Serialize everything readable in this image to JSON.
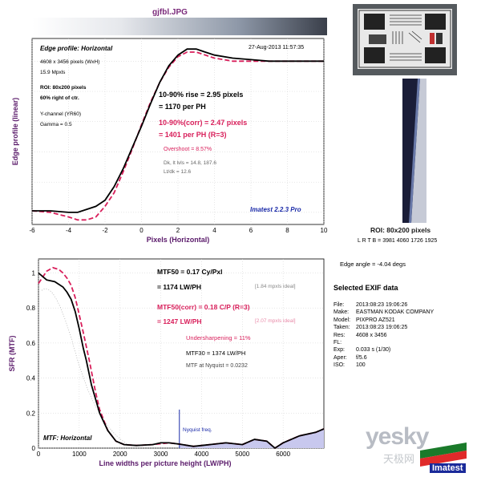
{
  "file_title": "gjfbl.JPG",
  "edge_plot": {
    "profile_label": "Edge profile: Horizontal",
    "date": "27-Aug-2013 11:57:35",
    "info_lines": [
      "4608 x 3456 pixels (WxH)",
      "15.9 Mpxls"
    ],
    "roi_lines": [
      "ROI: 80x200 pixels",
      "60% right of ctr."
    ],
    "channel_lines": [
      "Y-channel (YR60)",
      "Gamma = 0.5"
    ],
    "rise_line1": "10-90% rise = 2.95 pixels",
    "rise_line2": "= 1170 per PH",
    "corr_line1": "10-90%(corr) = 2.47 pixels",
    "corr_line2": "= 1401 per PH   (R=3)",
    "overshoot": "Overshoot = 8.57%",
    "dk_lvls": "Dk, lt lvls = 14.8, 187.6",
    "ltdk": "Lt/dk = 12.6",
    "version": "Imatest 2.2.3 Pro",
    "ylabel": "Edge profile (linear)",
    "xlabel": "Pixels (Horizontal)",
    "xticks": [
      "-6",
      "-4",
      "-2",
      "0",
      "2",
      "4",
      "6",
      "8",
      "10"
    ]
  },
  "mtf_plot": {
    "ylabel": "SFR (MTF)",
    "xlabel": "Line widths per picture height (LW/PH)",
    "yticks": [
      "0",
      "0.2",
      "0.4",
      "0.6",
      "0.8",
      "1"
    ],
    "xticks": [
      "0",
      "1000",
      "2000",
      "3000",
      "4000",
      "5000",
      "6000"
    ],
    "mtf50_line1": "MTF50 = 0.17 Cy/Pxl",
    "mtf50_line2": "= 1174 LW/PH",
    "mtf50_ideal": "[1.84 mpxls ideal]",
    "corr_line1": "MTF50(corr) = 0.18 C/P   (R=3)",
    "corr_line2": "= 1247 LW/PH",
    "corr_ideal": "[2.07 mpxls ideal]",
    "undersharpening": "Undersharpening = 11%",
    "mtf30": "MTF30 = 1374 LW/PH",
    "nyquist_mtf": "MTF at Nyquist = 0.0232",
    "nyquist_label": "Nyquist freq.",
    "corner_label": "MTF: Horizontal"
  },
  "roi_caption": "ROI: 80x200 pixels",
  "lrtb": "L R T B = 3981 4060  1726 1925",
  "edge_angle": "Edge angle = -4.04 degs",
  "exif": {
    "title": "Selected EXIF data",
    "rows": [
      {
        "label": "File:",
        "value": "2013:08:23 19:06:26"
      },
      {
        "label": "Make:",
        "value": "EASTMAN KODAK COMPANY"
      },
      {
        "label": "Model:",
        "value": "PIXPRO AZ521"
      },
      {
        "label": "Taken:",
        "value": "2013:08:23 19:06:25"
      },
      {
        "label": "Res:",
        "value": "4608 x 3456"
      },
      {
        "label": "FL:",
        "value": ""
      },
      {
        "label": "Exp:",
        "value": "0.033 s  (1/30)"
      },
      {
        "label": "Aper:",
        "value": "f/5.6"
      },
      {
        "label": "ISO:",
        "value": "100"
      }
    ]
  },
  "watermark": {
    "brand": "yesky",
    "cn": "天极网",
    "imatest": "Imatest"
  },
  "colors": {
    "black_curve": "#000000",
    "corr_curve": "#d81e5a",
    "axis_label": "#5a1a6a",
    "fill": "#c8c8ee",
    "title": "#7a2a7a"
  },
  "chart_data": [
    {
      "type": "line",
      "title": "Edge profile: Horizontal",
      "xlabel": "Pixels (Horizontal)",
      "ylabel": "Edge profile (linear)",
      "xlim": [
        -6,
        10
      ],
      "ylim": [
        -0.08,
        1.15
      ],
      "grid": true,
      "series": [
        {
          "x": [
            -6,
            -5,
            -4,
            -3.5,
            -3,
            -2.5,
            -2,
            -1.5,
            -1,
            -0.5,
            0,
            0.5,
            1,
            1.5,
            2,
            2.5,
            3,
            3.5,
            4,
            5,
            6,
            7,
            8,
            9,
            10
          ],
          "y": [
            0.01,
            0.01,
            0.0,
            0.0,
            0.02,
            0.04,
            0.08,
            0.17,
            0.29,
            0.43,
            0.57,
            0.72,
            0.86,
            0.97,
            1.04,
            1.08,
            1.08,
            1.06,
            1.04,
            1.02,
            1.01,
            1.0,
            1.0,
            1.0,
            1.0
          ]
        },
        {
          "x": [
            -6,
            -5,
            -4,
            -3.5,
            -3,
            -2.5,
            -2,
            -1.5,
            -1,
            -0.5,
            0,
            0.5,
            1,
            1.5,
            2,
            2.5,
            3,
            3.5,
            4,
            5,
            6,
            7,
            8,
            9,
            10
          ],
          "y": [
            0.01,
            0.0,
            -0.03,
            -0.05,
            -0.05,
            -0.03,
            0.04,
            0.13,
            0.27,
            0.42,
            0.58,
            0.73,
            0.86,
            0.96,
            1.03,
            1.06,
            1.06,
            1.04,
            1.02,
            1.0,
            1.0,
            1.0,
            1.0,
            1.0,
            1.0
          ]
        }
      ]
    },
    {
      "type": "line",
      "title": "MTF: Horizontal",
      "xlabel": "Line widths per picture height (LW/PH)",
      "ylabel": "SFR (MTF)",
      "xlim": [
        0,
        7000
      ],
      "ylim": [
        0,
        1.08
      ],
      "grid": true,
      "series": [
        {
          "x": [
            0,
            200,
            400,
            600,
            700,
            800,
            900,
            1000,
            1100,
            1174,
            1300,
            1400,
            1500,
            1700,
            1900,
            2100,
            2400,
            2800,
            3000,
            3200,
            3456,
            3800,
            4200,
            4600,
            5000,
            5300,
            5600,
            5800,
            6000,
            6400,
            6800,
            7000
          ],
          "y": [
            1.0,
            0.96,
            0.95,
            0.92,
            0.89,
            0.85,
            0.78,
            0.68,
            0.57,
            0.5,
            0.36,
            0.28,
            0.2,
            0.1,
            0.04,
            0.02,
            0.015,
            0.02,
            0.03,
            0.03,
            0.023,
            0.01,
            0.02,
            0.03,
            0.02,
            0.05,
            0.04,
            0.0,
            0.03,
            0.07,
            0.09,
            0.11
          ]
        },
        {
          "x": [
            0,
            200,
            350,
            500,
            600,
            700,
            800,
            900,
            1000,
            1100,
            1247,
            1400,
            1500,
            1700,
            1900,
            2100,
            2400,
            2800,
            3200,
            3456,
            3800,
            4200,
            4600,
            5000,
            5300,
            5600,
            5800,
            6000,
            6400,
            6800,
            7000
          ],
          "y": [
            0.94,
            1.01,
            1.03,
            1.02,
            1.0,
            0.97,
            0.93,
            0.86,
            0.76,
            0.66,
            0.5,
            0.32,
            0.22,
            0.1,
            0.04,
            0.02,
            0.015,
            0.02,
            0.03,
            0.023,
            0.01,
            0.02,
            0.03,
            0.02,
            0.05,
            0.04,
            0.0,
            0.03,
            0.07,
            0.09,
            0.11
          ]
        }
      ]
    }
  ]
}
